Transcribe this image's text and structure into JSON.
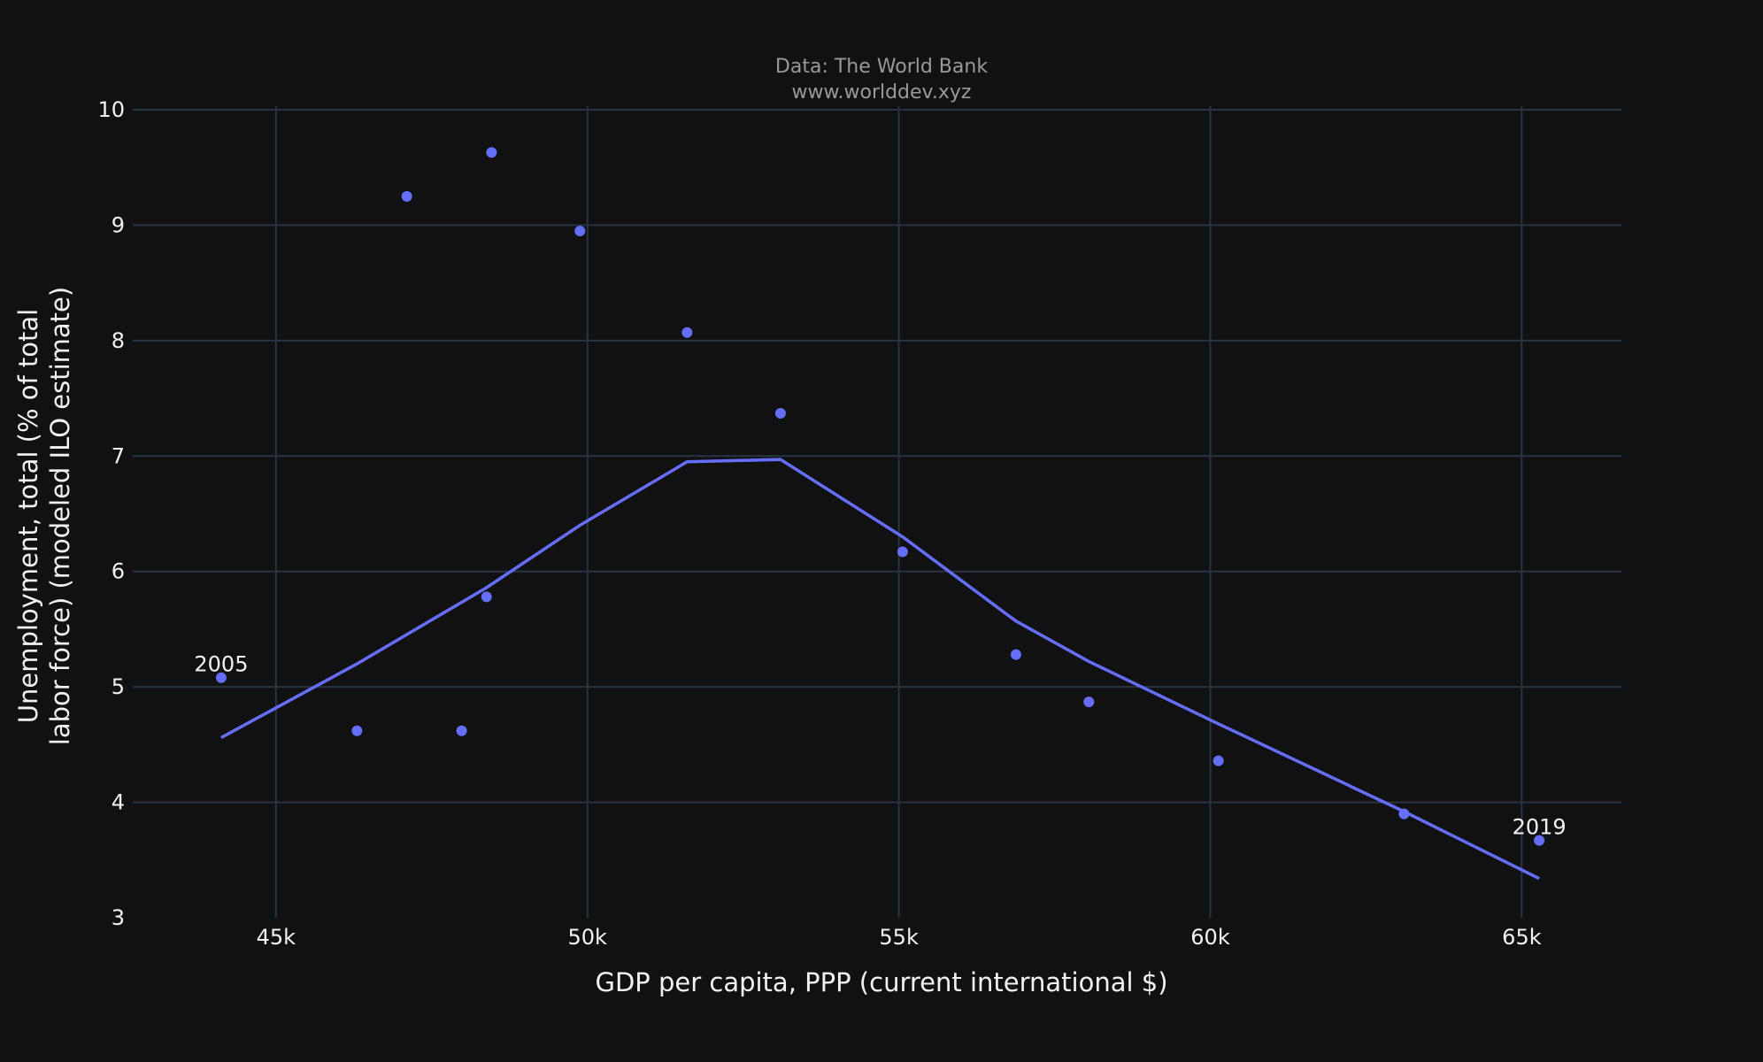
{
  "chart_data": {
    "type": "scatter",
    "source_line1": "Data: The World Bank",
    "source_line2": "www.worlddev.xyz",
    "xlabel": "GDP per capita, PPP (current international $)",
    "ylabel_line1": "Unemployment, total (% of total",
    "ylabel_line2": "labor force) (modeled ILO estimate)",
    "xlim": [
      42700,
      66600
    ],
    "ylim": [
      3,
      10
    ],
    "x_ticks": [
      {
        "value": 45000,
        "label": "45k"
      },
      {
        "value": 50000,
        "label": "50k"
      },
      {
        "value": 55000,
        "label": "55k"
      },
      {
        "value": 60000,
        "label": "60k"
      },
      {
        "value": 65000,
        "label": "65k"
      }
    ],
    "y_ticks": [
      {
        "value": 3,
        "label": "3"
      },
      {
        "value": 4,
        "label": "4"
      },
      {
        "value": 5,
        "label": "5"
      },
      {
        "value": 6,
        "label": "6"
      },
      {
        "value": 7,
        "label": "7"
      },
      {
        "value": 8,
        "label": "8"
      },
      {
        "value": 9,
        "label": "9"
      },
      {
        "value": 10,
        "label": "10"
      }
    ],
    "grid": true,
    "marker_color": "#636efa",
    "line_color": "#636efa",
    "points": [
      {
        "x": 44120,
        "y": 5.08,
        "label": "2005"
      },
      {
        "x": 46300,
        "y": 4.62
      },
      {
        "x": 47100,
        "y": 9.25
      },
      {
        "x": 47980,
        "y": 4.62
      },
      {
        "x": 48380,
        "y": 5.78
      },
      {
        "x": 48460,
        "y": 9.63
      },
      {
        "x": 49880,
        "y": 8.95
      },
      {
        "x": 51600,
        "y": 8.07
      },
      {
        "x": 53100,
        "y": 7.37
      },
      {
        "x": 55060,
        "y": 6.17
      },
      {
        "x": 56880,
        "y": 5.28
      },
      {
        "x": 58050,
        "y": 4.87
      },
      {
        "x": 60130,
        "y": 4.36
      },
      {
        "x": 63110,
        "y": 3.9
      },
      {
        "x": 65280,
        "y": 3.67,
        "label": "2019"
      }
    ],
    "trend_line": [
      {
        "x": 44120,
        "y": 4.56
      },
      {
        "x": 46300,
        "y": 5.2
      },
      {
        "x": 48380,
        "y": 5.86
      },
      {
        "x": 49880,
        "y": 6.4
      },
      {
        "x": 51600,
        "y": 6.95
      },
      {
        "x": 53100,
        "y": 6.97
      },
      {
        "x": 55060,
        "y": 6.3
      },
      {
        "x": 56880,
        "y": 5.57
      },
      {
        "x": 58050,
        "y": 5.22
      },
      {
        "x": 60130,
        "y": 4.68
      },
      {
        "x": 63110,
        "y": 3.92
      },
      {
        "x": 65280,
        "y": 3.34
      }
    ]
  }
}
